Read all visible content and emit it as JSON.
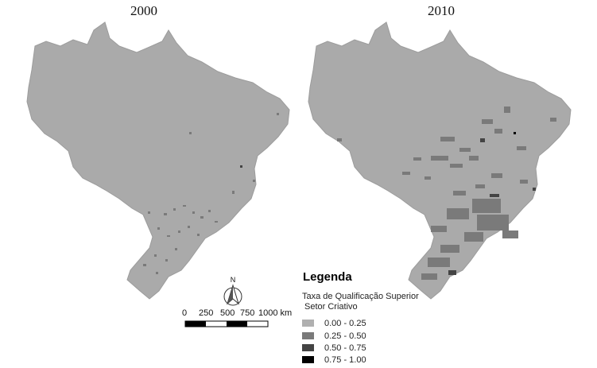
{
  "maps": [
    {
      "year": "2000"
    },
    {
      "year": "2010"
    }
  ],
  "scale_bar": {
    "ticks": [
      "0",
      "250",
      "500",
      "750",
      "1000 km"
    ],
    "north_label": "N"
  },
  "legend": {
    "title": "Legenda",
    "subtitle_line1": "Taxa de Qualificação Superior",
    "subtitle_line2": "Setor Criativo",
    "classes": [
      {
        "label": "0.00 - 0.25",
        "color": "#b0b0b0"
      },
      {
        "label": "0.25 - 0.50",
        "color": "#7a7a7a"
      },
      {
        "label": "0.50 - 0.75",
        "color": "#444444"
      },
      {
        "label": "0.75 - 1.00",
        "color": "#000000"
      }
    ]
  },
  "colors": {
    "base_fill": "#aaaaaa",
    "outline": "#9c9c9c"
  }
}
